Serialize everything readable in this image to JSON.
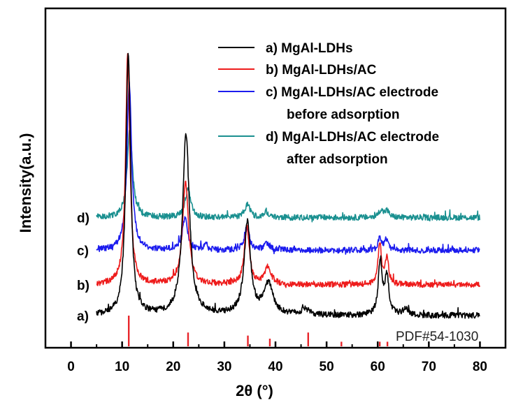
{
  "chart_data": {
    "type": "line",
    "xlabel": "2θ (°)",
    "ylabel": "Intensity(a.u.)",
    "xlim": [
      -5,
      85
    ],
    "xticks": [
      0,
      10,
      20,
      30,
      40,
      50,
      60,
      70,
      80
    ],
    "grid": false,
    "legend_position": "top-right",
    "reference": {
      "label": "PDF#54-1030",
      "color": "#e8262b",
      "peaks": [
        {
          "x": 11.3,
          "height": 1.0
        },
        {
          "x": 22.9,
          "height": 0.45
        },
        {
          "x": 34.6,
          "height": 0.35
        },
        {
          "x": 38.9,
          "height": 0.25
        },
        {
          "x": 46.4,
          "height": 0.45
        },
        {
          "x": 52.9,
          "height": 0.15
        },
        {
          "x": 60.4,
          "height": 0.15
        },
        {
          "x": 61.9,
          "height": 0.15
        }
      ]
    },
    "series": [
      {
        "name": "a) MgAl-LDHs",
        "curve_label": "a)",
        "color": "#000000",
        "baseline": 0.0,
        "x_range": [
          5,
          80
        ],
        "peaks": [
          {
            "x": 11.2,
            "height": 7.2,
            "width": 0.55
          },
          {
            "x": 22.5,
            "height": 5.0,
            "width": 0.8
          },
          {
            "x": 34.5,
            "height": 2.55,
            "width": 0.75
          },
          {
            "x": 38.6,
            "height": 0.85,
            "width": 1.1
          },
          {
            "x": 45.8,
            "height": 0.18,
            "width": 0.8
          },
          {
            "x": 60.5,
            "height": 1.5,
            "width": 0.45
          },
          {
            "x": 61.8,
            "height": 1.1,
            "width": 0.45
          },
          {
            "x": 65.5,
            "height": 0.15,
            "width": 0.8
          }
        ]
      },
      {
        "name": "b) MgAl-LDHs/AC",
        "curve_label": "b)",
        "color": "#ee1c1c",
        "baseline": 0.85,
        "x_range": [
          5,
          80
        ],
        "peaks": [
          {
            "x": 11.1,
            "height": 6.4,
            "width": 0.5
          },
          {
            "x": 22.4,
            "height": 2.8,
            "width": 0.7
          },
          {
            "x": 34.4,
            "height": 1.55,
            "width": 0.6
          },
          {
            "x": 38.5,
            "height": 0.45,
            "width": 0.8
          },
          {
            "x": 60.4,
            "height": 1.1,
            "width": 0.4
          },
          {
            "x": 61.8,
            "height": 0.75,
            "width": 0.4
          }
        ]
      },
      {
        "name": "c) MgAl-LDHs/AC electrode before adsorption",
        "curve_label": "c)",
        "color": "#1c1cee",
        "baseline": 1.8,
        "x_range": [
          5,
          80
        ],
        "peaks": [
          {
            "x": 11.4,
            "height": 4.6,
            "width": 0.55
          },
          {
            "x": 22.3,
            "height": 0.9,
            "width": 0.6
          },
          {
            "x": 26.4,
            "height": 0.22,
            "width": 0.3
          },
          {
            "x": 34.4,
            "height": 0.6,
            "width": 0.6
          },
          {
            "x": 38.4,
            "height": 0.2,
            "width": 0.6
          },
          {
            "x": 60.4,
            "height": 0.32,
            "width": 0.4
          },
          {
            "x": 61.7,
            "height": 0.3,
            "width": 0.4
          }
        ]
      },
      {
        "name": "d) MgAl-LDHs/AC electrode after adsorption",
        "curve_label": "d)",
        "color": "#1a9090",
        "baseline": 2.7,
        "x_range": [
          5,
          80
        ],
        "peaks": [
          {
            "x": 11.5,
            "height": 2.45,
            "width": 0.6
          },
          {
            "x": 22.9,
            "height": 0.8,
            "width": 0.6
          },
          {
            "x": 34.5,
            "height": 0.38,
            "width": 0.6
          },
          {
            "x": 38.1,
            "height": 0.18,
            "width": 0.5
          },
          {
            "x": 60.6,
            "height": 0.2,
            "width": 0.5
          },
          {
            "x": 61.8,
            "height": 0.18,
            "width": 0.5
          }
        ]
      }
    ]
  }
}
